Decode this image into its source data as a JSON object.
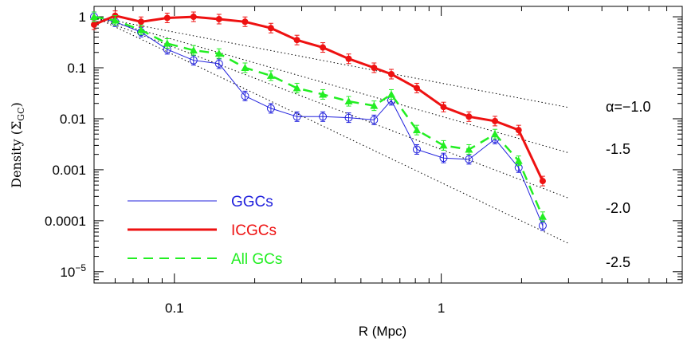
{
  "chart_data": {
    "type": "line",
    "xscale": "log",
    "yscale": "log",
    "xlim": [
      0.05,
      8.0
    ],
    "ylim": [
      6e-06,
      1.6
    ],
    "xlabel": "R (Mpc)",
    "ylabel": "Density (Σ",
    "ylabel_sub": "GC",
    "ylabel_close": ")",
    "x_ticks": [
      {
        "value": 0.1,
        "label": "0.1"
      },
      {
        "value": 1,
        "label": "1"
      }
    ],
    "y_ticks": [
      {
        "value": 1,
        "label": "1"
      },
      {
        "value": 0.1,
        "label": "0.1"
      },
      {
        "value": 0.01,
        "label": "0.01"
      },
      {
        "value": 0.001,
        "label": "0.001"
      },
      {
        "value": 0.0001,
        "label": "0.0001"
      },
      {
        "value": 1e-05,
        "label": "10",
        "sup": "−5"
      }
    ],
    "legend": {
      "placement": "bottom-left"
    },
    "series": [
      {
        "name": "GGCs",
        "color": "#2222dd",
        "style": "solid-thin",
        "marker": "open-circle",
        "x": [
          0.05,
          0.06,
          0.075,
          0.094,
          0.118,
          0.147,
          0.184,
          0.23,
          0.288,
          0.36,
          0.45,
          0.56,
          0.65,
          0.81,
          1.02,
          1.27,
          1.59,
          1.95,
          2.4
        ],
        "y": [
          1.0,
          0.8,
          0.5,
          0.23,
          0.14,
          0.12,
          0.028,
          0.016,
          0.011,
          0.011,
          0.0105,
          0.0095,
          0.023,
          0.0025,
          0.0017,
          0.0016,
          0.004,
          0.0011,
          8e-05
        ]
      },
      {
        "name": "ICGCs",
        "color": "#ee1111",
        "style": "solid-thick",
        "marker": "filled-circle",
        "x": [
          0.05,
          0.06,
          0.075,
          0.094,
          0.118,
          0.147,
          0.184,
          0.23,
          0.288,
          0.36,
          0.45,
          0.56,
          0.65,
          0.81,
          1.02,
          1.27,
          1.59,
          1.95,
          2.4
        ],
        "y": [
          0.7,
          1.05,
          0.8,
          0.95,
          1.0,
          0.9,
          0.8,
          0.6,
          0.35,
          0.25,
          0.15,
          0.1,
          0.075,
          0.04,
          0.017,
          0.011,
          0.009,
          0.006,
          0.0006
        ]
      },
      {
        "name": "All GCs",
        "color": "#22ee22",
        "style": "dashed",
        "marker": "filled-triangle",
        "x": [
          0.05,
          0.06,
          0.075,
          0.094,
          0.118,
          0.147,
          0.184,
          0.23,
          0.288,
          0.36,
          0.45,
          0.56,
          0.65,
          0.81,
          1.02,
          1.27,
          1.59,
          1.95,
          2.4
        ],
        "y": [
          1.0,
          0.85,
          0.55,
          0.3,
          0.22,
          0.19,
          0.1,
          0.07,
          0.04,
          0.03,
          0.022,
          0.018,
          0.03,
          0.006,
          0.003,
          0.0025,
          0.005,
          0.0015,
          0.00012
        ]
      }
    ],
    "reference_lines": [
      {
        "alpha": -1.0,
        "label": "α=−1.0",
        "x_end": 3.0
      },
      {
        "alpha": -1.5,
        "label": "-1.5",
        "x_end": 3.0
      },
      {
        "alpha": -2.0,
        "label": "-2.0",
        "x_end": 3.0
      },
      {
        "alpha": -2.5,
        "label": "-2.5",
        "x_end": 3.0
      }
    ],
    "reference_anchor": {
      "x": 0.05,
      "y": 1.0
    }
  }
}
